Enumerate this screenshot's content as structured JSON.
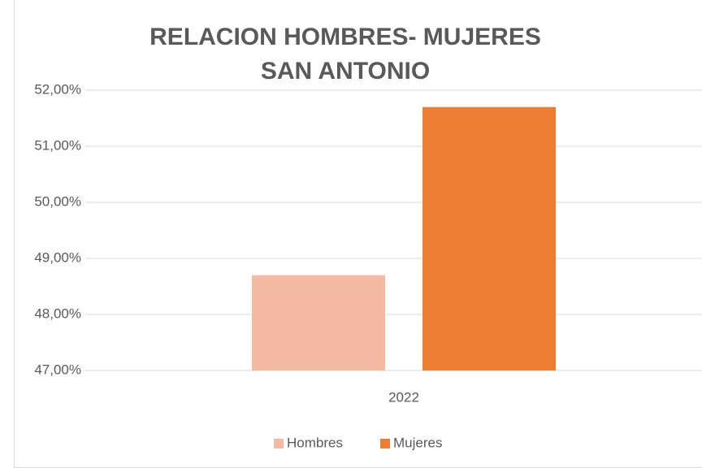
{
  "chart_data": {
    "type": "bar",
    "title": [
      "RELACION HOMBRES- MUJERES",
      "SAN ANTONIO"
    ],
    "categories": [
      "2022"
    ],
    "series": [
      {
        "name": "Hombres",
        "color": "#f4b9a3",
        "values": [
          48.7
        ]
      },
      {
        "name": "Mujeres",
        "color": "#ed7d31",
        "values": [
          51.7
        ]
      }
    ],
    "ylim": [
      47,
      52
    ],
    "yticks": [
      {
        "value": 47,
        "label": "47,00%"
      },
      {
        "value": 48,
        "label": "48,00%"
      },
      {
        "value": 49,
        "label": "49,00%"
      },
      {
        "value": 50,
        "label": "50,00%"
      },
      {
        "value": 51,
        "label": "51,00%"
      },
      {
        "value": 52,
        "label": "52,00%"
      }
    ],
    "grid": true,
    "legend": "bottom"
  }
}
